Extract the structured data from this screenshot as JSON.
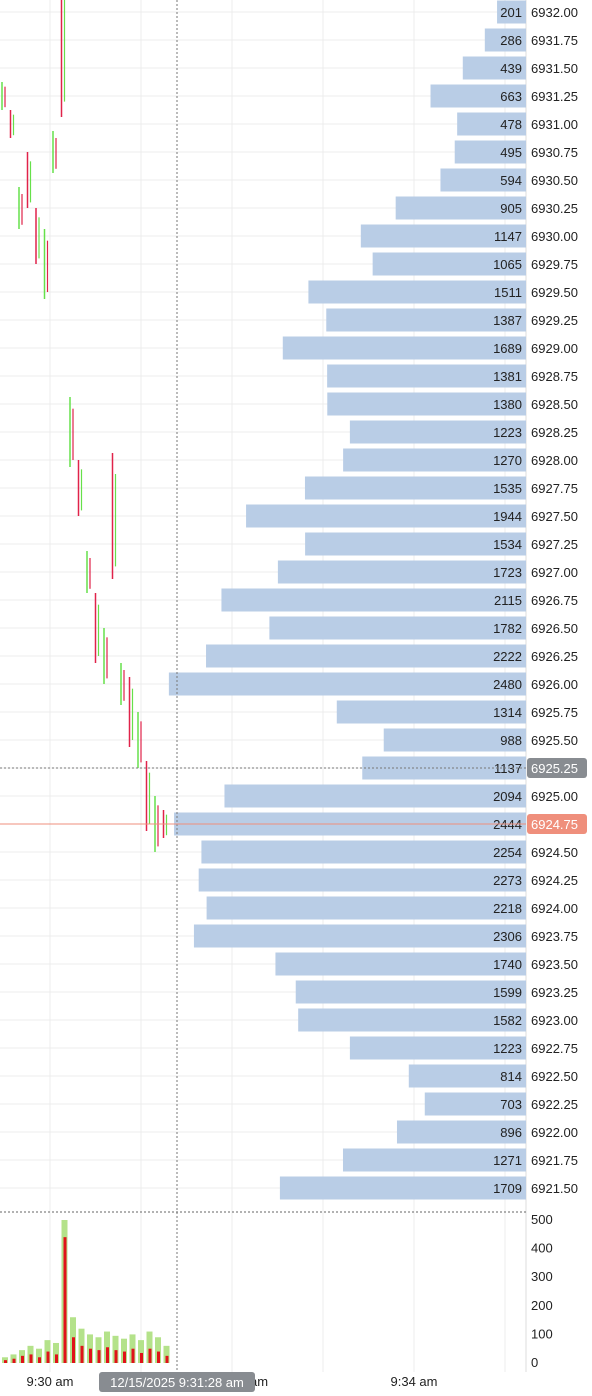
{
  "colors": {
    "up": "#66e04a",
    "down": "#e0234a",
    "bar": "#b9cde6",
    "grid": "#ececec",
    "current_price_bg": "#ef8f7c",
    "crosshair_bg": "#888c91",
    "volume_up": "#b4e28a",
    "volume_down": "#e0121a"
  },
  "price_axis": {
    "crosshair_price": "6925.25",
    "current_price": "6924.75"
  },
  "crosshair_time": "12/15/2025 9:31:28 am",
  "time_axis_labels": [
    {
      "text": "9:30 am",
      "t": 0
    },
    {
      "text": "am",
      "t": 2
    },
    {
      "text": "9:34 am",
      "t": 4
    }
  ],
  "volume_axis": {
    "ticks": [
      "500",
      "400",
      "300",
      "200",
      "100",
      "0"
    ],
    "max": 500
  },
  "chart_data": {
    "type": "bar",
    "description_axis": "price",
    "levels": [
      {
        "price": "6932.00",
        "volume": 201
      },
      {
        "price": "6931.75",
        "volume": 286
      },
      {
        "price": "6931.50",
        "volume": 439
      },
      {
        "price": "6931.25",
        "volume": 663
      },
      {
        "price": "6931.00",
        "volume": 478
      },
      {
        "price": "6930.75",
        "volume": 495
      },
      {
        "price": "6930.50",
        "volume": 594
      },
      {
        "price": "6930.25",
        "volume": 905
      },
      {
        "price": "6930.00",
        "volume": 1147
      },
      {
        "price": "6929.75",
        "volume": 1065
      },
      {
        "price": "6929.50",
        "volume": 1511
      },
      {
        "price": "6929.25",
        "volume": 1387
      },
      {
        "price": "6929.00",
        "volume": 1689
      },
      {
        "price": "6928.75",
        "volume": 1381
      },
      {
        "price": "6928.50",
        "volume": 1380
      },
      {
        "price": "6928.25",
        "volume": 1223
      },
      {
        "price": "6928.00",
        "volume": 1270
      },
      {
        "price": "6927.75",
        "volume": 1535
      },
      {
        "price": "6927.50",
        "volume": 1944
      },
      {
        "price": "6927.25",
        "volume": 1534
      },
      {
        "price": "6927.00",
        "volume": 1723
      },
      {
        "price": "6926.75",
        "volume": 2115
      },
      {
        "price": "6926.50",
        "volume": 1782
      },
      {
        "price": "6926.25",
        "volume": 2222
      },
      {
        "price": "6926.00",
        "volume": 2480
      },
      {
        "price": "6925.75",
        "volume": 1314
      },
      {
        "price": "6925.50",
        "volume": 988
      },
      {
        "price": "6925.25",
        "volume": 1137
      },
      {
        "price": "6925.00",
        "volume": 2094
      },
      {
        "price": "6924.75",
        "volume": 2444
      },
      {
        "price": "6924.50",
        "volume": 2254
      },
      {
        "price": "6924.25",
        "volume": 2273
      },
      {
        "price": "6924.00",
        "volume": 2218
      },
      {
        "price": "6923.75",
        "volume": 2306
      },
      {
        "price": "6923.50",
        "volume": 1740
      },
      {
        "price": "6923.25",
        "volume": 1599
      },
      {
        "price": "6923.00",
        "volume": 1582
      },
      {
        "price": "6922.75",
        "volume": 1223
      },
      {
        "price": "6922.50",
        "volume": 814
      },
      {
        "price": "6922.25",
        "volume": 703
      },
      {
        "price": "6922.00",
        "volume": 896
      },
      {
        "price": "6921.75",
        "volume": 1271
      },
      {
        "price": "6921.50",
        "volume": 1709
      }
    ],
    "volume_max": 2500,
    "price_max": 6932.0,
    "price_min": 6921.5,
    "ticks": [
      {
        "t": 0.0,
        "price": 6931.25,
        "side": "up",
        "len": 1.0
      },
      {
        "t": 0.05,
        "price": 6931.0,
        "side": "down",
        "len": 1.0
      },
      {
        "t": 0.1,
        "price": 6930.25,
        "side": "up",
        "len": 1.5
      },
      {
        "t": 0.15,
        "price": 6930.5,
        "side": "down",
        "len": 2.0
      },
      {
        "t": 0.2,
        "price": 6930.0,
        "side": "down",
        "len": 2.0
      },
      {
        "t": 0.25,
        "price": 6929.75,
        "side": "up",
        "len": 2.5
      },
      {
        "t": 0.3,
        "price": 6930.75,
        "side": "up",
        "len": 1.5
      },
      {
        "t": 0.35,
        "price": 6931.75,
        "side": "down",
        "len": 5.5
      },
      {
        "t": 0.4,
        "price": 6928.25,
        "side": "up",
        "len": 2.5
      },
      {
        "t": 0.45,
        "price": 6927.75,
        "side": "down",
        "len": 2.0
      },
      {
        "t": 0.5,
        "price": 6927.0,
        "side": "up",
        "len": 1.5
      },
      {
        "t": 0.55,
        "price": 6926.5,
        "side": "down",
        "len": 2.5
      },
      {
        "t": 0.6,
        "price": 6926.25,
        "side": "up",
        "len": 2.0
      },
      {
        "t": 0.65,
        "price": 6927.5,
        "side": "down",
        "len": 4.5
      },
      {
        "t": 0.7,
        "price": 6926.0,
        "side": "up",
        "len": 1.5
      },
      {
        "t": 0.75,
        "price": 6925.75,
        "side": "down",
        "len": 2.5
      },
      {
        "t": 0.8,
        "price": 6925.5,
        "side": "up",
        "len": 2.0
      },
      {
        "t": 0.85,
        "price": 6925.0,
        "side": "down",
        "len": 2.5
      },
      {
        "t": 0.9,
        "price": 6924.75,
        "side": "up",
        "len": 2.0
      },
      {
        "t": 0.95,
        "price": 6924.75,
        "side": "down",
        "len": 1.0
      }
    ],
    "volume_bars": [
      {
        "t": 0.0,
        "up": 20,
        "down": 10
      },
      {
        "t": 0.05,
        "up": 30,
        "down": 15
      },
      {
        "t": 0.1,
        "up": 45,
        "down": 25
      },
      {
        "t": 0.15,
        "up": 60,
        "down": 30
      },
      {
        "t": 0.2,
        "up": 50,
        "down": 20
      },
      {
        "t": 0.25,
        "up": 80,
        "down": 40
      },
      {
        "t": 0.3,
        "up": 70,
        "down": 30
      },
      {
        "t": 0.35,
        "up": 500,
        "down": 440
      },
      {
        "t": 0.4,
        "up": 160,
        "down": 90
      },
      {
        "t": 0.45,
        "up": 120,
        "down": 60
      },
      {
        "t": 0.5,
        "up": 100,
        "down": 50
      },
      {
        "t": 0.55,
        "up": 90,
        "down": 45
      },
      {
        "t": 0.6,
        "up": 110,
        "down": 55
      },
      {
        "t": 0.65,
        "up": 95,
        "down": 45
      },
      {
        "t": 0.7,
        "up": 85,
        "down": 40
      },
      {
        "t": 0.75,
        "up": 100,
        "down": 50
      },
      {
        "t": 0.8,
        "up": 80,
        "down": 35
      },
      {
        "t": 0.85,
        "up": 110,
        "down": 50
      },
      {
        "t": 0.9,
        "up": 90,
        "down": 40
      },
      {
        "t": 0.95,
        "up": 60,
        "down": 25
      }
    ]
  }
}
